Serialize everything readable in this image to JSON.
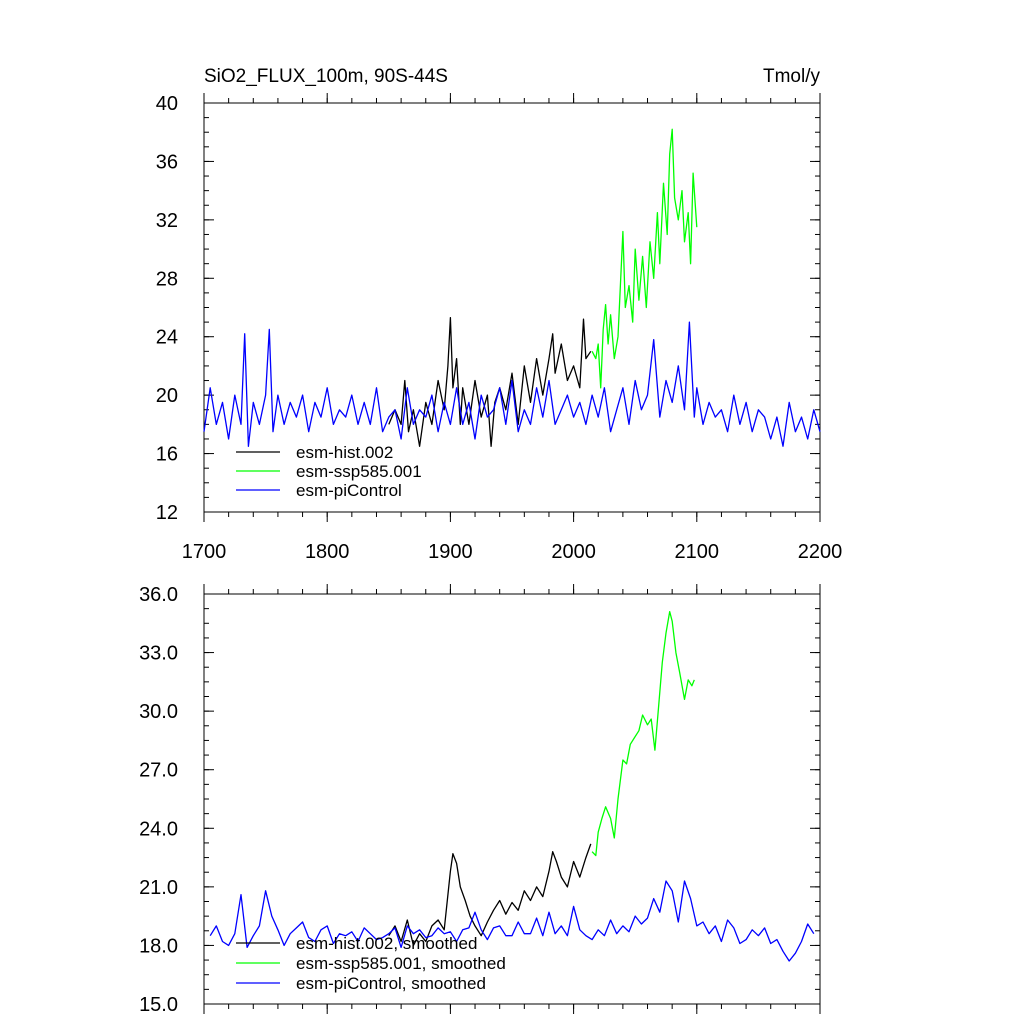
{
  "chart_data": [
    {
      "type": "line",
      "title": "SiO2_FLUX_100m, 90S-44S",
      "units": "Tmol/y",
      "xlabel": "",
      "ylabel": "",
      "xlim": [
        1700,
        2200
      ],
      "ylim": [
        12,
        40
      ],
      "xticks": [
        1700,
        1800,
        1900,
        2000,
        2100,
        2200
      ],
      "xtick_labels": [
        "1700",
        "1800",
        "1900",
        "2000",
        "2100",
        "2200"
      ],
      "yticks": [
        12,
        16,
        20,
        24,
        28,
        32,
        36,
        40
      ],
      "ytick_labels": [
        "12",
        "16",
        "20",
        "24",
        "28",
        "32",
        "36",
        "40"
      ],
      "legend_position": "bottom-left",
      "grid": false,
      "series": [
        {
          "name": "esm-hist.002",
          "color": "#000000",
          "x": [
            1850,
            1855,
            1860,
            1863,
            1866,
            1870,
            1875,
            1880,
            1885,
            1890,
            1895,
            1898,
            1900,
            1902,
            1905,
            1908,
            1910,
            1915,
            1920,
            1925,
            1930,
            1933,
            1936,
            1940,
            1945,
            1950,
            1955,
            1960,
            1965,
            1970,
            1975,
            1980,
            1983,
            1985,
            1990,
            1995,
            2000,
            2005,
            2008,
            2010,
            2014
          ],
          "y": [
            18.0,
            19.0,
            18.0,
            21.0,
            17.5,
            19.0,
            16.5,
            19.5,
            18.0,
            21.0,
            19.0,
            22.0,
            25.3,
            20.5,
            22.5,
            18.0,
            20.5,
            18.0,
            21.0,
            18.5,
            20.0,
            16.5,
            19.5,
            20.5,
            19.0,
            21.5,
            18.0,
            22.0,
            19.5,
            22.5,
            20.0,
            22.5,
            24.2,
            21.5,
            23.5,
            21.0,
            22.0,
            20.5,
            25.2,
            22.5,
            23.0
          ]
        },
        {
          "name": "esm-ssp585.001",
          "color": "#00ff00",
          "x": [
            2015,
            2018,
            2020,
            2022,
            2024,
            2026,
            2028,
            2030,
            2033,
            2036,
            2040,
            2042,
            2045,
            2048,
            2050,
            2053,
            2056,
            2059,
            2062,
            2065,
            2068,
            2070,
            2073,
            2076,
            2078,
            2080,
            2082,
            2085,
            2088,
            2090,
            2093,
            2095,
            2097,
            2100
          ],
          "y": [
            23.0,
            22.5,
            23.5,
            20.5,
            24.5,
            26.2,
            23.5,
            25.5,
            22.5,
            24.0,
            31.2,
            26.0,
            27.5,
            25.0,
            30.0,
            26.5,
            29.5,
            26.0,
            30.5,
            28.0,
            32.5,
            29.0,
            34.5,
            31.0,
            36.5,
            38.2,
            33.5,
            32.0,
            34.0,
            30.5,
            32.5,
            29.0,
            35.2,
            31.5
          ]
        },
        {
          "name": "esm-piControl",
          "color": "#0000ff",
          "x": [
            1700,
            1705,
            1710,
            1715,
            1720,
            1725,
            1730,
            1733,
            1736,
            1740,
            1745,
            1750,
            1753,
            1756,
            1760,
            1765,
            1770,
            1775,
            1780,
            1785,
            1790,
            1795,
            1800,
            1805,
            1810,
            1815,
            1820,
            1825,
            1830,
            1835,
            1840,
            1845,
            1850,
            1855,
            1860,
            1865,
            1870,
            1875,
            1880,
            1885,
            1890,
            1895,
            1900,
            1905,
            1910,
            1915,
            1920,
            1925,
            1930,
            1935,
            1940,
            1945,
            1950,
            1955,
            1960,
            1965,
            1970,
            1975,
            1980,
            1985,
            1990,
            1995,
            2000,
            2005,
            2010,
            2015,
            2020,
            2025,
            2030,
            2035,
            2040,
            2045,
            2050,
            2055,
            2060,
            2065,
            2070,
            2075,
            2080,
            2085,
            2090,
            2094,
            2098,
            2100,
            2105,
            2110,
            2115,
            2120,
            2125,
            2130,
            2135,
            2140,
            2145,
            2150,
            2155,
            2160,
            2165,
            2170,
            2175,
            2180,
            2185,
            2190,
            2195,
            2200
          ],
          "y": [
            17.5,
            20.5,
            18.0,
            19.5,
            17.0,
            20.0,
            18.0,
            24.2,
            16.5,
            19.5,
            18.0,
            20.0,
            24.5,
            17.5,
            20.0,
            18.0,
            19.5,
            18.5,
            20.0,
            17.5,
            19.5,
            18.5,
            20.5,
            18.0,
            19.0,
            18.5,
            20.0,
            18.0,
            19.5,
            18.0,
            20.5,
            17.5,
            18.5,
            19.0,
            17.0,
            20.5,
            18.0,
            19.0,
            18.5,
            20.0,
            17.5,
            19.5,
            18.0,
            20.5,
            18.0,
            19.5,
            17.0,
            20.0,
            18.5,
            19.0,
            20.5,
            18.0,
            21.0,
            17.5,
            19.0,
            18.0,
            20.5,
            18.5,
            21.0,
            18.0,
            19.0,
            20.0,
            18.5,
            19.5,
            18.0,
            20.0,
            18.5,
            20.5,
            17.5,
            19.0,
            20.5,
            18.0,
            21.0,
            19.0,
            20.0,
            23.8,
            18.5,
            21.0,
            19.5,
            22.0,
            19.0,
            25.0,
            18.5,
            20.5,
            18.0,
            19.5,
            18.5,
            19.0,
            17.5,
            20.0,
            18.0,
            19.5,
            17.5,
            19.0,
            18.5,
            17.0,
            18.5,
            16.5,
            19.5,
            17.5,
            18.5,
            17.0,
            19.0,
            17.5
          ]
        }
      ]
    },
    {
      "type": "line",
      "title": "",
      "xlabel": "",
      "ylabel": "",
      "xlim": [
        1700,
        2200
      ],
      "ylim": [
        15.0,
        36.0
      ],
      "yticks": [
        15.0,
        18.0,
        21.0,
        24.0,
        27.0,
        30.0,
        33.0,
        36.0
      ],
      "ytick_labels": [
        "15.0",
        "18.0",
        "21.0",
        "24.0",
        "27.0",
        "30.0",
        "33.0",
        "36.0"
      ],
      "legend_position": "bottom-left",
      "grid": false,
      "series": [
        {
          "name": "esm-hist.002, smoothed",
          "color": "#000000",
          "x": [
            1850,
            1855,
            1860,
            1865,
            1870,
            1875,
            1880,
            1885,
            1890,
            1895,
            1900,
            1902,
            1905,
            1908,
            1912,
            1916,
            1920,
            1925,
            1930,
            1935,
            1940,
            1945,
            1950,
            1955,
            1960,
            1965,
            1970,
            1975,
            1980,
            1983,
            1986,
            1990,
            1995,
            2000,
            2005,
            2010,
            2014
          ],
          "y": [
            18.5,
            19.0,
            18.2,
            19.3,
            18.0,
            18.6,
            18.2,
            19.0,
            19.3,
            18.8,
            21.8,
            22.7,
            22.2,
            21.0,
            20.3,
            19.5,
            19.0,
            18.5,
            19.2,
            19.8,
            20.3,
            19.6,
            20.2,
            19.8,
            20.8,
            20.3,
            21.0,
            20.5,
            21.8,
            22.8,
            22.3,
            21.5,
            21.0,
            22.3,
            21.5,
            22.5,
            23.2
          ]
        },
        {
          "name": "esm-ssp585.001, smoothed",
          "color": "#00ff00",
          "x": [
            2015,
            2018,
            2020,
            2023,
            2026,
            2030,
            2033,
            2036,
            2040,
            2043,
            2046,
            2050,
            2053,
            2056,
            2060,
            2063,
            2066,
            2068,
            2072,
            2075,
            2078,
            2080,
            2083,
            2086,
            2090,
            2093,
            2096,
            2098
          ],
          "y": [
            22.8,
            22.6,
            23.8,
            24.5,
            25.1,
            24.5,
            23.5,
            25.5,
            27.5,
            27.3,
            28.3,
            28.7,
            29.0,
            29.8,
            29.3,
            29.6,
            28.0,
            29.5,
            32.5,
            34.0,
            35.1,
            34.6,
            33.0,
            32.0,
            30.6,
            31.6,
            31.3,
            31.6
          ]
        },
        {
          "name": "esm-piControl, smoothed",
          "color": "#0000ff",
          "x": [
            1705,
            1710,
            1715,
            1720,
            1725,
            1730,
            1735,
            1740,
            1745,
            1750,
            1755,
            1760,
            1765,
            1770,
            1775,
            1780,
            1785,
            1790,
            1795,
            1800,
            1805,
            1810,
            1815,
            1820,
            1825,
            1830,
            1835,
            1840,
            1845,
            1850,
            1855,
            1860,
            1865,
            1870,
            1875,
            1880,
            1885,
            1890,
            1895,
            1900,
            1905,
            1910,
            1915,
            1920,
            1925,
            1930,
            1935,
            1940,
            1945,
            1950,
            1955,
            1960,
            1965,
            1970,
            1975,
            1980,
            1985,
            1990,
            1995,
            2000,
            2005,
            2010,
            2015,
            2020,
            2025,
            2030,
            2035,
            2040,
            2045,
            2050,
            2055,
            2060,
            2065,
            2070,
            2075,
            2080,
            2085,
            2090,
            2095,
            2100,
            2105,
            2110,
            2115,
            2120,
            2125,
            2130,
            2135,
            2140,
            2145,
            2150,
            2155,
            2160,
            2165,
            2170,
            2175,
            2180,
            2185,
            2190,
            2195
          ],
          "y": [
            18.5,
            19.0,
            18.2,
            18.0,
            18.6,
            20.6,
            17.9,
            18.5,
            19.0,
            20.8,
            19.5,
            18.8,
            18.0,
            18.6,
            18.9,
            19.2,
            18.4,
            18.2,
            18.8,
            19.0,
            18.1,
            18.6,
            18.5,
            18.7,
            18.2,
            18.9,
            18.6,
            18.3,
            18.4,
            18.6,
            18.9,
            17.9,
            19.0,
            18.6,
            18.8,
            18.4,
            18.5,
            18.9,
            18.6,
            18.7,
            18.2,
            18.8,
            18.9,
            19.7,
            18.8,
            18.3,
            18.9,
            19.0,
            18.5,
            18.5,
            19.2,
            18.6,
            18.6,
            19.4,
            18.5,
            19.7,
            18.6,
            19.0,
            18.5,
            20.0,
            18.8,
            18.5,
            18.3,
            18.8,
            18.5,
            19.3,
            18.6,
            19.0,
            18.7,
            19.5,
            19.1,
            19.4,
            20.4,
            19.7,
            21.3,
            20.8,
            19.2,
            21.3,
            20.4,
            19.0,
            19.2,
            18.6,
            19.0,
            18.2,
            19.3,
            18.9,
            18.1,
            18.3,
            18.8,
            18.5,
            18.9,
            18.1,
            18.3,
            17.7,
            17.2,
            17.6,
            18.2,
            19.1,
            18.6
          ]
        }
      ]
    }
  ]
}
